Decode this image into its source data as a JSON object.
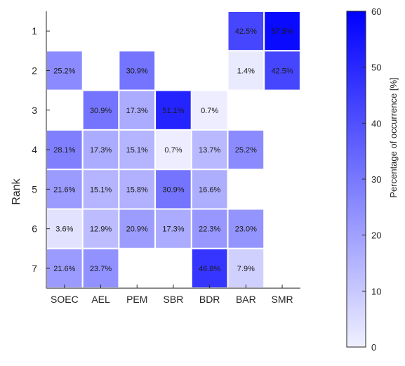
{
  "chart_data": {
    "type": "heatmap",
    "xlabel": "",
    "ylabel": "Rank",
    "x_categories": [
      "SOEC",
      "AEL",
      "PEM",
      "SBR",
      "BDR",
      "BAR",
      "SMR"
    ],
    "y_categories": [
      "1",
      "2",
      "3",
      "4",
      "5",
      "6",
      "7"
    ],
    "values": [
      [
        null,
        null,
        null,
        null,
        null,
        42.5,
        57.5
      ],
      [
        25.2,
        null,
        30.9,
        null,
        null,
        1.4,
        42.5
      ],
      [
        null,
        30.9,
        17.3,
        51.1,
        0.7,
        null,
        null
      ],
      [
        28.1,
        17.3,
        15.1,
        0.7,
        13.7,
        25.2,
        null
      ],
      [
        21.6,
        15.1,
        15.8,
        30.9,
        16.6,
        null,
        null
      ],
      [
        3.6,
        12.9,
        20.9,
        17.3,
        22.3,
        23.0,
        null
      ],
      [
        21.6,
        23.7,
        null,
        null,
        46.8,
        7.9,
        null
      ]
    ],
    "labels": [
      [
        null,
        null,
        null,
        null,
        null,
        "42.5%",
        "57.5%"
      ],
      [
        "25.2%",
        null,
        "30.9%",
        null,
        null,
        "1.4%",
        "42.5%"
      ],
      [
        null,
        "30.9%",
        "17.3%",
        "51.1%",
        "0.7%",
        null,
        null
      ],
      [
        "28.1%",
        "17.3%",
        "15.1%",
        "0.7%",
        "13.7%",
        "25.2%",
        null
      ],
      [
        "21.6%",
        "15.1%",
        "15.8%",
        "30.9%",
        "16.6%",
        null,
        null
      ],
      [
        "3.6%",
        "12.9%",
        "20.9%",
        "17.3%",
        "22.3%",
        "23.0%",
        null
      ],
      [
        "21.6%",
        "23.7%",
        null,
        null,
        "46.8%",
        "7.9%",
        null
      ]
    ],
    "colorbar": {
      "label": "Percentage of occurrence [%]",
      "range": [
        0,
        60
      ],
      "ticks": [
        "0",
        "10",
        "20",
        "30",
        "40",
        "50",
        "60"
      ],
      "color_low": "#ffffff",
      "color_high": "#0000ff"
    },
    "grid": false
  }
}
